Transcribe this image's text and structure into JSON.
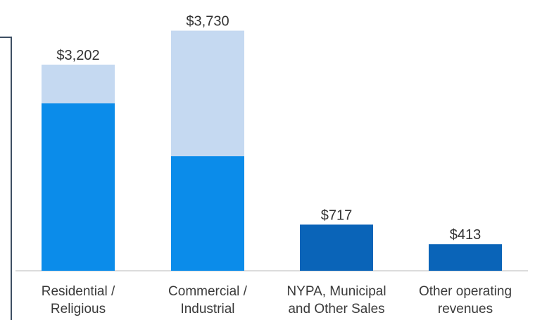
{
  "chart_data": {
    "type": "bar",
    "stacked": true,
    "categories": [
      [
        "Residential /",
        "Religious"
      ],
      [
        "Commercial /",
        "Industrial"
      ],
      [
        "NYPA, Municipal",
        "and Other Sales"
      ],
      [
        "Other operating",
        "revenues"
      ]
    ],
    "totals": [
      "$3,202",
      "$3,730",
      "$717",
      "$413"
    ],
    "values_total": [
      3202,
      3730,
      717,
      413
    ],
    "series": [
      {
        "values": [
          2600,
          1780,
          717,
          413
        ],
        "colors": [
          "#0b8cea",
          "#0b8cea",
          "#0a64b8",
          "#0a64b8"
        ]
      },
      {
        "values": [
          602,
          1950,
          0,
          0
        ],
        "colors": [
          "#c5d9f1",
          "#c5d9f1",
          "#c5d9f1",
          "#c5d9f1"
        ]
      }
    ],
    "ylim": [
      0,
      3900
    ],
    "grid": false,
    "legend": "none"
  }
}
